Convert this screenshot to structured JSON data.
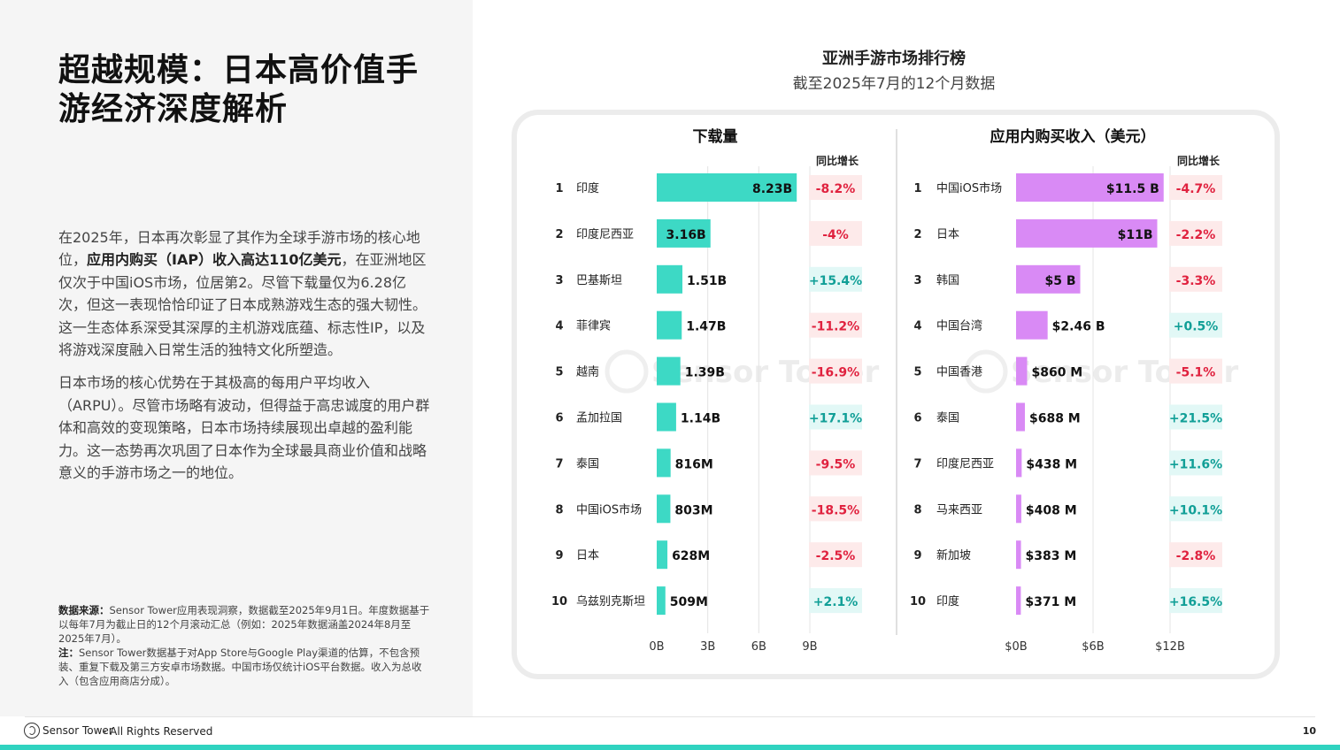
{
  "title": "超越规模：日本高价值手游经济深度解析",
  "body": {
    "p1_pre": "在2025年，日本再次彰显了其作为全球手游市场的核心地位，",
    "p1_bold": "应用内购买（IAP）收入高达110亿美元",
    "p1_post": "，在亚洲地区仅次于中国iOS市场，位居第2。尽管下载量仅为6.28亿次，但这一表现恰恰印证了日本成熟游戏生态的强大韧性。这一生态体系深受其深厚的主机游戏底蕴、标志性IP，以及将游戏深度融入日常生活的独特文化所塑造。",
    "p2": "日本市场的核心优势在于其极高的每用户平均收入（ARPU）。尽管市场略有波动，但得益于高忠诚度的用户群体和高效的变现策略，日本市场持续展现出卓越的盈利能力。这一态势再次巩固了日本作为全球最具商业价值和战略意义的手游市场之一的地位。"
  },
  "source": {
    "label1": "数据来源：",
    "text1": "Sensor Tower应用表现洞察，数据截至2025年9月1日。年度数据基于以每年7月为截止日的12个月滚动汇总（例如：2025年数据涵盖2024年8月至2025年7月）。",
    "label2": "注：",
    "text2": "Sensor Tower数据基于对App Store与Google Play渠道的估算，不包含预装、重复下载及第三方安卓市场数据。中国市场仅统计iOS平台数据。收入为总收入（包含应用商店分成）。"
  },
  "chart_header": {
    "title": "亚洲手游市场排行榜",
    "subtitle": "截至2025年7月的12个月数据"
  },
  "footer": {
    "brand": "Sensor Tower",
    "rights": "- All Rights Reserved",
    "page": "10"
  },
  "watermark": "Sensor Tower",
  "colors": {
    "downloads_bar": "#3dd9c5",
    "revenue_bar": "#d98af5",
    "negative_text": "#e0223f",
    "negative_bg": "#fdeaea",
    "positive_text": "#119f97",
    "positive_bg": "#e2f8f6",
    "footer_accent": "#2fd3c0"
  },
  "chart_data": [
    {
      "type": "bar",
      "orientation": "horizontal",
      "title": "下载量",
      "growth_header": "同比增长",
      "ranks": [
        "1",
        "2",
        "3",
        "4",
        "5",
        "6",
        "7",
        "8",
        "9",
        "10"
      ],
      "categories": [
        "印度",
        "印度尼西亚",
        "巴基斯坦",
        "菲律宾",
        "越南",
        "孟加拉国",
        "泰国",
        "中国iOS市场",
        "日本",
        "乌兹别克斯坦"
      ],
      "values": [
        8.23,
        3.16,
        1.51,
        1.47,
        1.39,
        1.14,
        0.816,
        0.803,
        0.628,
        0.509
      ],
      "unit": "B",
      "value_labels": [
        "8.23B",
        "3.16B",
        "1.51B",
        "1.47B",
        "1.39B",
        "1.14B",
        "816M",
        "803M",
        "628M",
        "509M"
      ],
      "growth": [
        "-8.2%",
        "-4%",
        "+15.4%",
        "-11.2%",
        "-16.9%",
        "+17.1%",
        "-9.5%",
        "-18.5%",
        "-2.5%",
        "+2.1%"
      ],
      "xlim": [
        0,
        9
      ],
      "ticks": [
        0,
        3,
        6,
        9
      ],
      "tick_labels": [
        "0B",
        "3B",
        "6B",
        "9B"
      ],
      "grid": true
    },
    {
      "type": "bar",
      "orientation": "horizontal",
      "title": "应用内购买收入（美元）",
      "growth_header": "同比增长",
      "ranks": [
        "1",
        "2",
        "3",
        "4",
        "5",
        "6",
        "7",
        "8",
        "9",
        "10"
      ],
      "categories": [
        "中国iOS市场",
        "日本",
        "韩国",
        "中国台湾",
        "中国香港",
        "泰国",
        "印度尼西亚",
        "马来西亚",
        "新加坡",
        "印度"
      ],
      "values": [
        11.5,
        11.0,
        5.0,
        2.46,
        0.86,
        0.688,
        0.438,
        0.408,
        0.383,
        0.371
      ],
      "unit": "$B",
      "value_labels": [
        "$11.5 B",
        "$11B",
        "$5 B",
        "$2.46 B",
        "$860 M",
        "$688 M",
        "$438 M",
        "$408 M",
        "$383 M",
        "$371 M"
      ],
      "growth": [
        "-4.7%",
        "-2.2%",
        "-3.3%",
        "+0.5%",
        "-5.1%",
        "+21.5%",
        "+11.6%",
        "+10.1%",
        "-2.8%",
        "+16.5%"
      ],
      "xlim": [
        0,
        12
      ],
      "ticks": [
        0,
        6,
        12
      ],
      "tick_labels": [
        "$0B",
        "$6B",
        "$12B"
      ],
      "grid": true
    }
  ]
}
